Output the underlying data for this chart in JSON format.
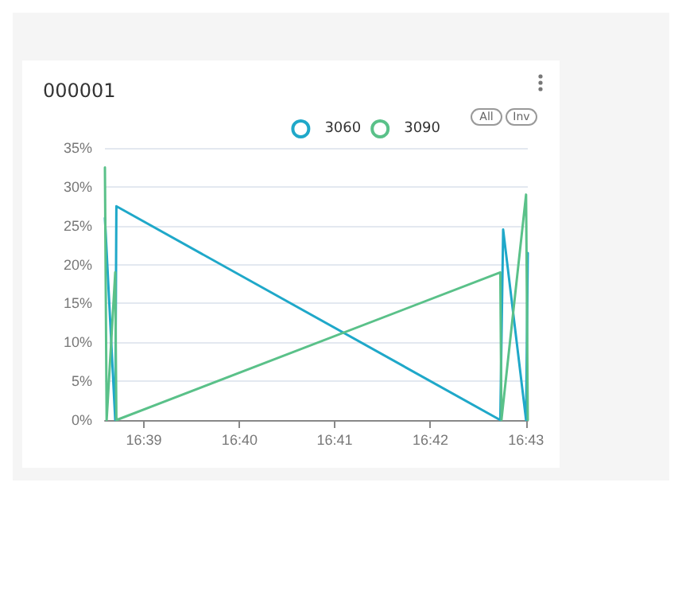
{
  "chart_data": {
    "type": "line",
    "title": "000001",
    "series": [
      {
        "name": "3060",
        "color": "#1fa8c9",
        "x": [
          16.6432,
          16.645,
          16.6452,
          16.7122,
          16.7127,
          16.7167,
          16.717
        ],
        "values": [
          26,
          0,
          27.5,
          0,
          24.5,
          0,
          21.5
        ]
      },
      {
        "name": "3090",
        "color": "#5ac189",
        "x": [
          16.6432,
          16.6435,
          16.645,
          16.6452,
          16.7122,
          16.7124,
          16.7167,
          16.717
        ],
        "values": [
          32.5,
          0,
          19,
          0,
          19,
          0,
          29,
          0
        ]
      }
    ],
    "xlim": [
      16.6432,
      16.717
    ],
    "xticks": [
      {
        "value": 16.65,
        "label": "16:39"
      },
      {
        "value": 16.6667,
        "label": "16:40"
      },
      {
        "value": 16.6833,
        "label": "16:41"
      },
      {
        "value": 16.7,
        "label": "16:42"
      },
      {
        "value": 16.7167,
        "label": "16:43"
      }
    ],
    "ylim": [
      0,
      35
    ],
    "yticks": [
      {
        "value": 0,
        "label": "0%"
      },
      {
        "value": 5,
        "label": "5%"
      },
      {
        "value": 10,
        "label": "10%"
      },
      {
        "value": 15,
        "label": "15%"
      },
      {
        "value": 20,
        "label": "20%"
      },
      {
        "value": 25,
        "label": "25%"
      },
      {
        "value": 30,
        "label": "30%"
      },
      {
        "value": 35,
        "label": "35%"
      }
    ],
    "grid": "y",
    "legend": "top right",
    "line_style": "solid",
    "annotations": [
      "All",
      "Inv"
    ]
  }
}
